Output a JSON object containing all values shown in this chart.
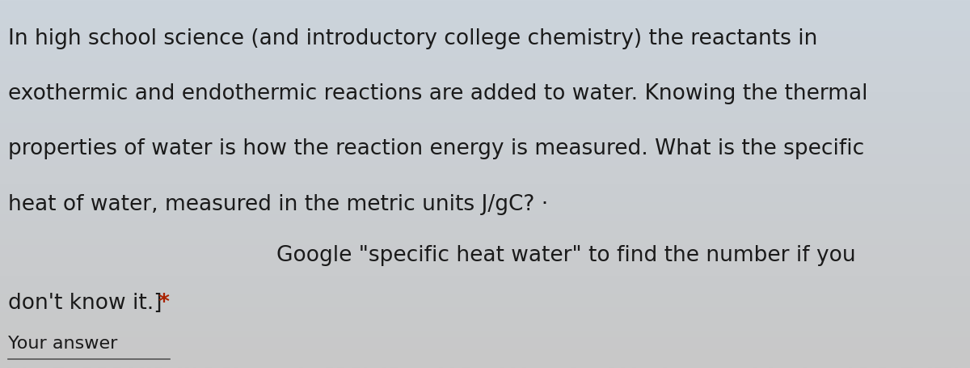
{
  "background_color_top": "#c8c8c8",
  "background_color_bottom": "#d0d8e0",
  "text_color": "#1a1a1a",
  "red_star_color": "#aa2200",
  "line1": "In high school science (and introductory college chemistry) the reactants in",
  "line2": "exothermic and endothermic reactions are added to water. Knowing the thermal",
  "line3": "properties of water is how the reaction energy is measured. What is the specific",
  "line4": "heat of water, measured in the metric units J/gC? ·",
  "line5": "Google \"specific heat water\" to find the number if you",
  "line6_part1": "don't know it.]",
  "line6_star": " *",
  "your_answer_label": "Your answer",
  "font_size_main": 19,
  "font_size_answer": 16,
  "line_indent": 0.008,
  "line5_indent": 0.285
}
